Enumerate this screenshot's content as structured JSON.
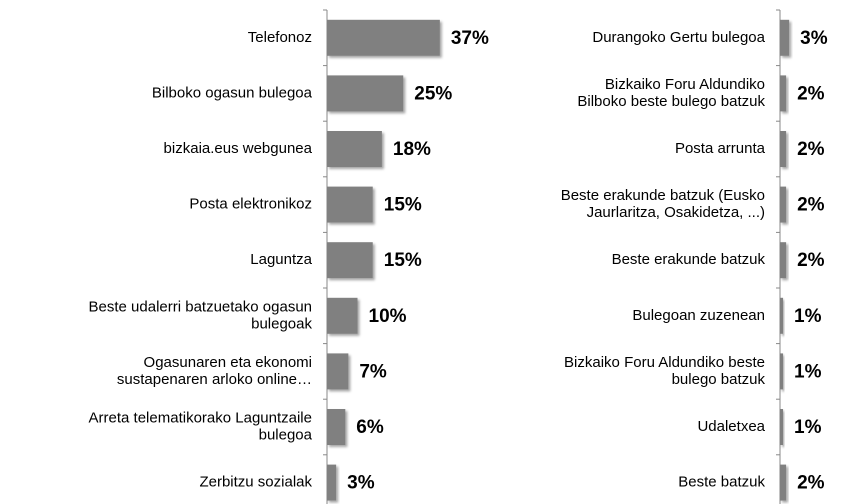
{
  "chart_data": [
    {
      "type": "bar",
      "orientation": "horizontal",
      "color": "#808080",
      "categories": [
        "Telefonoz",
        "Bilboko ogasun bulegoa",
        "bizkaia.eus webgunea",
        "Posta elektronikoz",
        "Laguntza",
        "Beste udalerri batzuetako ogasun\nbulegoak",
        "Ogasunaren eta ekonomi\nsustapenaren arloko online…",
        "Arreta telematikorako Laguntzaile\nbulegoa",
        "Zerbitzu sozialak"
      ],
      "values": [
        37,
        25,
        18,
        15,
        15,
        10,
        7,
        6,
        3
      ],
      "value_labels": [
        "37%",
        "25%",
        "18%",
        "15%",
        "15%",
        "10%",
        "7%",
        "6%",
        "3%"
      ],
      "xlim": [
        0,
        40
      ]
    },
    {
      "type": "bar",
      "orientation": "horizontal",
      "color": "#808080",
      "categories": [
        "Durangoko Gertu bulegoa",
        "Bizkaiko Foru Aldundiko\nBilboko beste bulego batzuk",
        "Posta arrunta",
        "Beste erakunde batzuk (Eusko\nJaurlaritza, Osakidetza, ...)",
        "Beste erakunde batzuk",
        "Bulegoan zuzenean",
        "Bizkaiko Foru Aldundiko beste\nbulego batzuk",
        "Udaletxea",
        "Beste batzuk"
      ],
      "values": [
        3,
        2,
        2,
        2,
        2,
        1,
        1,
        1,
        2
      ],
      "value_labels": [
        "3%",
        "2%",
        "2%",
        "2%",
        "2%",
        "1%",
        "1%",
        "1%",
        "2%"
      ],
      "xlim": [
        0,
        40
      ]
    }
  ]
}
